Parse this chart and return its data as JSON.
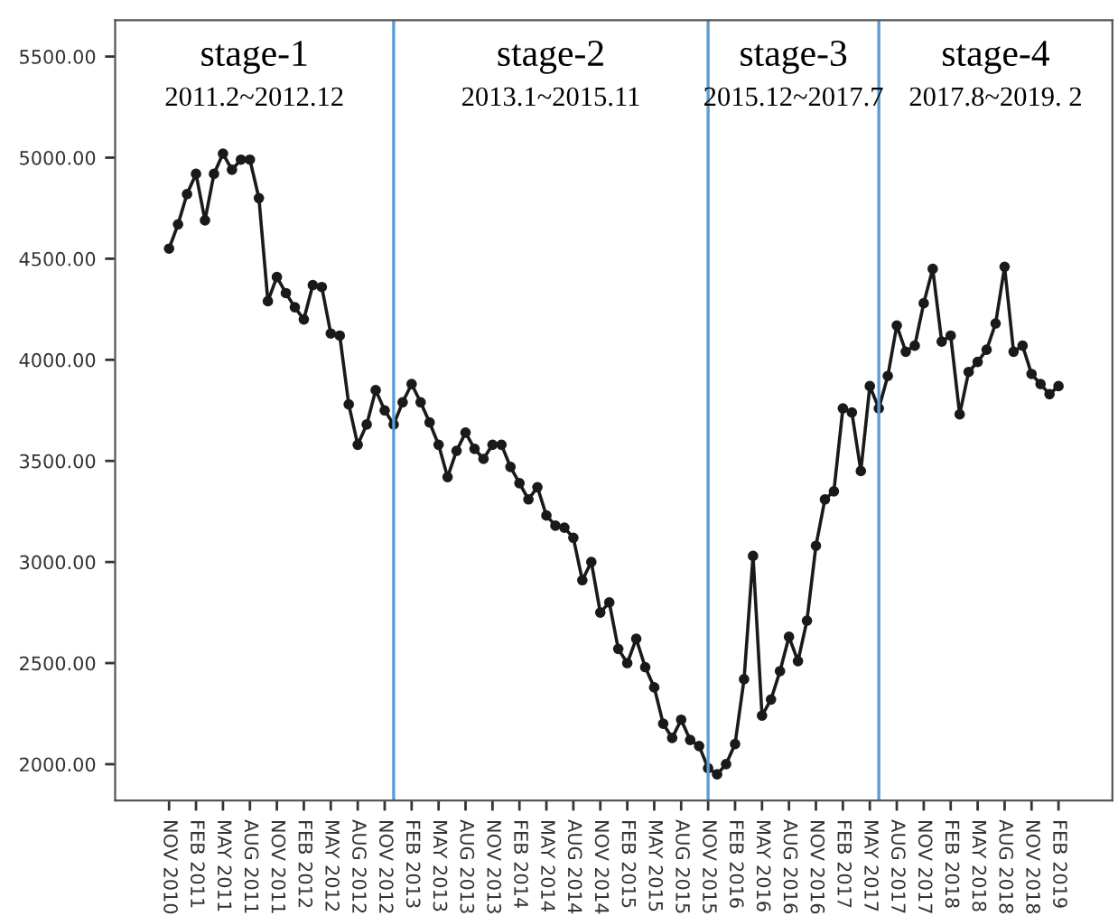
{
  "chart_data": {
    "type": "line",
    "annotations": [
      "stage-1",
      "2011.2~2012.12",
      "stage-2",
      "2013.1~2015.11",
      "stage-3",
      "2015.12~2017.7",
      "stage-4",
      "2017.8~2019. 2"
    ],
    "x": [
      "2010-11",
      "2010-12",
      "2011-01",
      "2011-02",
      "2011-03",
      "2011-04",
      "2011-05",
      "2011-06",
      "2011-07",
      "2011-08",
      "2011-09",
      "2011-10",
      "2011-11",
      "2011-12",
      "2012-01",
      "2012-02",
      "2012-03",
      "2012-04",
      "2012-05",
      "2012-06",
      "2012-07",
      "2012-08",
      "2012-09",
      "2012-10",
      "2012-11",
      "2012-12",
      "2013-01",
      "2013-02",
      "2013-03",
      "2013-04",
      "2013-05",
      "2013-06",
      "2013-07",
      "2013-08",
      "2013-09",
      "2013-10",
      "2013-11",
      "2013-12",
      "2014-01",
      "2014-02",
      "2014-03",
      "2014-04",
      "2014-05",
      "2014-06",
      "2014-07",
      "2014-08",
      "2014-09",
      "2014-10",
      "2014-11",
      "2014-12",
      "2015-01",
      "2015-02",
      "2015-03",
      "2015-04",
      "2015-05",
      "2015-06",
      "2015-07",
      "2015-08",
      "2015-09",
      "2015-10",
      "2015-11",
      "2015-12",
      "2016-01",
      "2016-02",
      "2016-03",
      "2016-04",
      "2016-05",
      "2016-06",
      "2016-07",
      "2016-08",
      "2016-09",
      "2016-10",
      "2016-11",
      "2016-12",
      "2017-01",
      "2017-02",
      "2017-03",
      "2017-04",
      "2017-05",
      "2017-06",
      "2017-07",
      "2017-08",
      "2017-09",
      "2017-10",
      "2017-11",
      "2017-12",
      "2018-01",
      "2018-02",
      "2018-03",
      "2018-04",
      "2018-05",
      "2018-06",
      "2018-07",
      "2018-08",
      "2018-09",
      "2018-10",
      "2018-11",
      "2018-12",
      "2019-01",
      "2019-02"
    ],
    "series": [
      {
        "color": "#1a1a1a",
        "values": [
          4550,
          4670,
          4820,
          4920,
          4690,
          4920,
          5020,
          4940,
          4990,
          4990,
          4800,
          4290,
          4410,
          4330,
          4260,
          4200,
          4370,
          4360,
          4130,
          4120,
          3780,
          3580,
          3680,
          3850,
          3750,
          3680,
          3790,
          3880,
          3790,
          3690,
          3580,
          3420,
          3550,
          3640,
          3560,
          3510,
          3580,
          3580,
          3470,
          3390,
          3310,
          3370,
          3230,
          3180,
          3170,
          3120,
          2910,
          3000,
          2750,
          2800,
          2570,
          2500,
          2620,
          2480,
          2380,
          2200,
          2130,
          2220,
          2120,
          2090,
          1980,
          1950,
          2000,
          2100,
          2420,
          3030,
          2240,
          2320,
          2460,
          2630,
          2510,
          2710,
          3080,
          3310,
          3350,
          3760,
          3740,
          3450,
          3870,
          3760,
          3920,
          4170,
          4040,
          4070,
          4280,
          4450,
          4090,
          4120,
          3730,
          3940,
          3990,
          4050,
          4180,
          4460,
          4040,
          4070,
          3930,
          3880,
          3830,
          3870
        ]
      }
    ],
    "ylim": [
      1820,
      5680
    ],
    "yticks": [
      {
        "value": 2000,
        "label": "2000.00"
      },
      {
        "value": 2500,
        "label": "2500.00"
      },
      {
        "value": 3000,
        "label": "3000.00"
      },
      {
        "value": 3500,
        "label": "3500.00"
      },
      {
        "value": 4000,
        "label": "4000.00"
      },
      {
        "value": 4500,
        "label": "4500.00"
      },
      {
        "value": 5000,
        "label": "5000.00"
      },
      {
        "value": 5500,
        "label": "5500.00"
      }
    ],
    "xlim": [
      "2010-05",
      "2019-08"
    ],
    "xticks": [
      {
        "value": "2010-11",
        "label": "NOV 2010"
      },
      {
        "value": "2011-02",
        "label": "FEB 2011"
      },
      {
        "value": "2011-05",
        "label": "MAY 2011"
      },
      {
        "value": "2011-08",
        "label": "AUG 2011"
      },
      {
        "value": "2011-11",
        "label": "NOV 2011"
      },
      {
        "value": "2012-02",
        "label": "FEB 2012"
      },
      {
        "value": "2012-05",
        "label": "MAY 2012"
      },
      {
        "value": "2012-08",
        "label": "AUG 2012"
      },
      {
        "value": "2012-11",
        "label": "NOV 2012"
      },
      {
        "value": "2013-02",
        "label": "FEB 2013"
      },
      {
        "value": "2013-05",
        "label": "MAY 2013"
      },
      {
        "value": "2013-08",
        "label": "AUG 2013"
      },
      {
        "value": "2013-11",
        "label": "NOV 2013"
      },
      {
        "value": "2014-02",
        "label": "FEB 2014"
      },
      {
        "value": "2014-05",
        "label": "MAY 2014"
      },
      {
        "value": "2014-08",
        "label": "AUG 2014"
      },
      {
        "value": "2014-11",
        "label": "NOV 2014"
      },
      {
        "value": "2015-02",
        "label": "FEB 2015"
      },
      {
        "value": "2015-05",
        "label": "MAY 2015"
      },
      {
        "value": "2015-08",
        "label": "AUG 2015"
      },
      {
        "value": "2015-11",
        "label": "NOV 2015"
      },
      {
        "value": "2016-02",
        "label": "FEB 2016"
      },
      {
        "value": "2016-05",
        "label": "MAY 2016"
      },
      {
        "value": "2016-08",
        "label": "AUG 2016"
      },
      {
        "value": "2016-11",
        "label": "NOV 2016"
      },
      {
        "value": "2017-02",
        "label": "FEB 2017"
      },
      {
        "value": "2017-05",
        "label": "MAY 2017"
      },
      {
        "value": "2017-08",
        "label": "AUG 2017"
      },
      {
        "value": "2017-11",
        "label": "NOV 2017"
      },
      {
        "value": "2018-02",
        "label": "FEB 2018"
      },
      {
        "value": "2018-05",
        "label": "MAY 2018"
      },
      {
        "value": "2018-08",
        "label": "AUG 2018"
      },
      {
        "value": "2018-11",
        "label": "NOV 2018"
      },
      {
        "value": "2019-02",
        "label": "FEB 2019"
      }
    ],
    "ref_lines": [
      {
        "axis": "x",
        "value": "2012-12",
        "color": "#5b9bd5"
      },
      {
        "axis": "x",
        "value": "2015-11",
        "color": "#5b9bd5"
      },
      {
        "axis": "x",
        "value": "2017-06",
        "color": "#5b9bd5"
      }
    ],
    "marker": "circle",
    "line_style": "solid",
    "grid": false,
    "legend": false
  }
}
